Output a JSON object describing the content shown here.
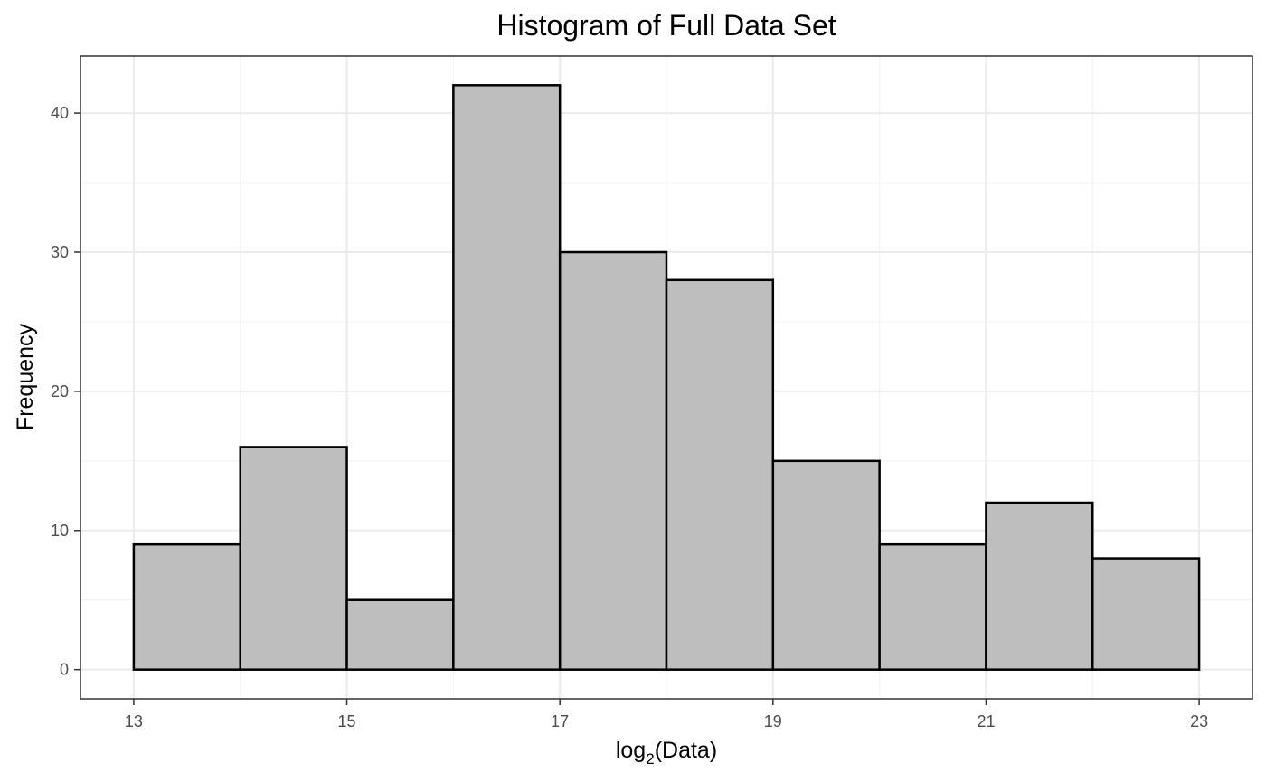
{
  "chart_data": {
    "type": "bar",
    "title": "Histogram of Full Data Set",
    "xlabel_base": "log",
    "xlabel_sub": "2",
    "xlabel_rest": "(Data)",
    "ylabel": "Frequency",
    "bins": [
      {
        "start": 13,
        "end": 14,
        "count": 9
      },
      {
        "start": 14,
        "end": 15,
        "count": 16
      },
      {
        "start": 15,
        "end": 16,
        "count": 5
      },
      {
        "start": 16,
        "end": 17,
        "count": 42
      },
      {
        "start": 17,
        "end": 18,
        "count": 30
      },
      {
        "start": 18,
        "end": 19,
        "count": 28
      },
      {
        "start": 19,
        "end": 20,
        "count": 15
      },
      {
        "start": 20,
        "end": 21,
        "count": 9
      },
      {
        "start": 21,
        "end": 22,
        "count": 12
      },
      {
        "start": 22,
        "end": 23,
        "count": 8
      }
    ],
    "x_ticks": [
      13,
      15,
      17,
      19,
      21,
      23
    ],
    "y_ticks": [
      0,
      10,
      20,
      30,
      40
    ],
    "xlim": [
      12.5,
      23.5
    ],
    "ylim": [
      -2.1,
      44.1
    ],
    "grid": true,
    "bar_fill": "#bebebe",
    "bar_stroke": "#000000"
  }
}
